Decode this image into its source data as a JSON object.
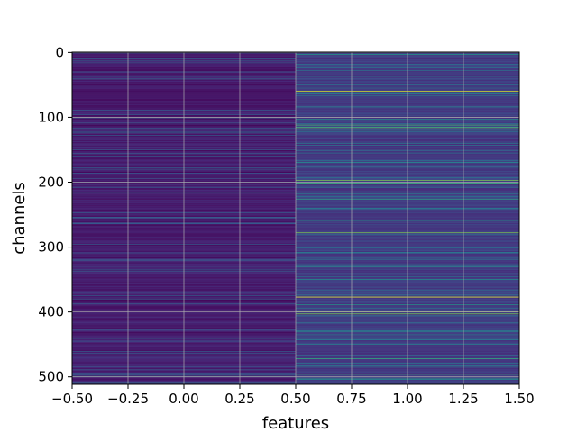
{
  "chart_data": {
    "type": "heatmap",
    "title": "",
    "xlabel": "features",
    "ylabel": "channels",
    "xlim": [
      -0.5,
      1.5
    ],
    "ylim": [
      511.5,
      -0.5
    ],
    "y_inverted": true,
    "grid": true,
    "colormap": "viridis",
    "n_rows": 512,
    "n_cols": 2,
    "x_ticks": [
      -0.5,
      -0.25,
      0.0,
      0.25,
      0.5,
      0.75,
      1.0,
      1.25,
      1.5
    ],
    "x_tick_labels": [
      "−0.50",
      "−0.25",
      "0.00",
      "0.25",
      "0.50",
      "0.75",
      "1.00",
      "1.25",
      "1.50"
    ],
    "y_ticks": [
      0,
      100,
      200,
      300,
      400,
      500
    ],
    "y_tick_labels": [
      "0",
      "100",
      "200",
      "300",
      "400",
      "500"
    ],
    "columns": [
      {
        "feature": 0,
        "base_level": 0.08,
        "highlights": [
          {
            "channel": 41,
            "value": 0.35
          },
          {
            "channel": 124,
            "value": 0.3
          },
          {
            "channel": 180,
            "value": 0.28
          },
          {
            "channel": 200,
            "value": 0.22
          },
          {
            "channel": 330,
            "value": 0.2
          },
          {
            "channel": 470,
            "value": 0.18
          },
          {
            "channel": 497,
            "value": 0.25
          }
        ]
      },
      {
        "feature": 1,
        "base_level": 0.18,
        "highlights": [
          {
            "channel": 3,
            "value": 0.55
          },
          {
            "channel": 60,
            "value": 0.95
          },
          {
            "channel": 84,
            "value": 0.45
          },
          {
            "channel": 103,
            "value": 0.5
          },
          {
            "channel": 112,
            "value": 0.7
          },
          {
            "channel": 116,
            "value": 0.75
          },
          {
            "channel": 120,
            "value": 0.6
          },
          {
            "channel": 140,
            "value": 0.45
          },
          {
            "channel": 170,
            "value": 0.45
          },
          {
            "channel": 197,
            "value": 0.8
          },
          {
            "channel": 201,
            "value": 0.7
          },
          {
            "channel": 226,
            "value": 0.6
          },
          {
            "channel": 259,
            "value": 0.55
          },
          {
            "channel": 278,
            "value": 0.8
          },
          {
            "channel": 300,
            "value": 0.5
          },
          {
            "channel": 330,
            "value": 0.5
          },
          {
            "channel": 350,
            "value": 0.5
          },
          {
            "channel": 377,
            "value": 1.0
          },
          {
            "channel": 389,
            "value": 0.55
          },
          {
            "channel": 400,
            "value": 0.85
          },
          {
            "channel": 403,
            "value": 0.8
          },
          {
            "channel": 430,
            "value": 0.5
          },
          {
            "channel": 450,
            "value": 0.45
          },
          {
            "channel": 472,
            "value": 0.65
          },
          {
            "channel": 496,
            "value": 0.7
          },
          {
            "channel": 503,
            "value": 0.55
          }
        ]
      }
    ]
  }
}
